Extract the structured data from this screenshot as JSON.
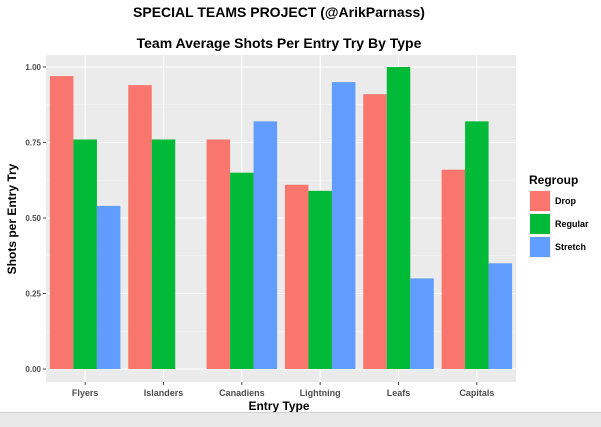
{
  "chart_data": {
    "type": "bar",
    "suptitle": "SPECIAL TEAMS PROJECT (@ArikParnass)",
    "title": "Team Average Shots Per Entry Try By Type",
    "xlabel": "Entry Type",
    "ylabel": "Shots per Entry Try",
    "categories": [
      "Flyers",
      "Islanders",
      "Canadiens",
      "Lightning",
      "Leafs",
      "Capitals"
    ],
    "ylim": [
      0,
      1.05
    ],
    "yticks": [
      0.0,
      0.25,
      0.5,
      0.75,
      1.0
    ],
    "ytick_labels": [
      "0.00",
      "0.25",
      "0.50",
      "0.75",
      "1.00"
    ],
    "grid": true,
    "legend": {
      "title": "Regroup",
      "placement": "right"
    },
    "series": [
      {
        "name": "Drop",
        "color": "#F8766D",
        "values": [
          0.97,
          0.94,
          0.76,
          0.61,
          0.91,
          0.66
        ]
      },
      {
        "name": "Regular",
        "color": "#00BA38",
        "values": [
          0.76,
          0.76,
          0.65,
          0.59,
          1.0,
          0.82
        ]
      },
      {
        "name": "Stretch",
        "color": "#619CFF",
        "values": [
          0.54,
          null,
          0.82,
          0.95,
          0.3,
          0.35
        ]
      }
    ]
  }
}
